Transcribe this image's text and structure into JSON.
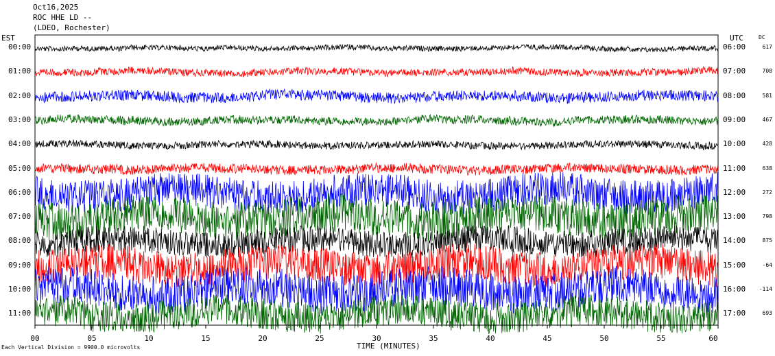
{
  "header": {
    "date": "Oct16,2025",
    "station": "ROC HHE LD --",
    "network": "(LDEO, Rochester)"
  },
  "left_label": "EST",
  "right_label": "UTC",
  "dc_label": "DC",
  "footer": "Each Vertical Division = 9900.0 microvolts",
  "chart_data": {
    "type": "line",
    "chart_kind": "helicorder",
    "xlabel": "TIME (MINUTES)",
    "xlim": [
      0,
      60
    ],
    "xticks": [
      "00",
      "05",
      "10",
      "15",
      "20",
      "25",
      "30",
      "35",
      "40",
      "45",
      "50",
      "55",
      "60"
    ],
    "rows": [
      {
        "est": "00:00",
        "utc": "06:00",
        "dc": "617",
        "color": "#000000",
        "amplitude": 0.22
      },
      {
        "est": "01:00",
        "utc": "07:00",
        "dc": "708",
        "color": "#ff0000",
        "amplitude": 0.3
      },
      {
        "est": "02:00",
        "utc": "08:00",
        "dc": "581",
        "color": "#0000ff",
        "amplitude": 0.45
      },
      {
        "est": "03:00",
        "utc": "09:00",
        "dc": "467",
        "color": "#006400",
        "amplitude": 0.35
      },
      {
        "est": "04:00",
        "utc": "10:00",
        "dc": "428",
        "color": "#000000",
        "amplitude": 0.3
      },
      {
        "est": "05:00",
        "utc": "11:00",
        "dc": "638",
        "color": "#ff0000",
        "amplitude": 0.4
      },
      {
        "est": "06:00",
        "utc": "12:00",
        "dc": "272",
        "color": "#0000ff",
        "amplitude": 1.4
      },
      {
        "est": "07:00",
        "utc": "13:00",
        "dc": "798",
        "color": "#006400",
        "amplitude": 1.6
      },
      {
        "est": "08:00",
        "utc": "14:00",
        "dc": "875",
        "color": "#000000",
        "amplitude": 1.1
      },
      {
        "est": "09:00",
        "utc": "15:00",
        "dc": "-64",
        "color": "#ff0000",
        "amplitude": 1.5
      },
      {
        "est": "10:00",
        "utc": "16:00",
        "dc": "-114",
        "color": "#0000ff",
        "amplitude": 1.6
      },
      {
        "est": "11:00",
        "utc": "17:00",
        "dc": "693",
        "color": "#006400",
        "amplitude": 1.3
      }
    ]
  }
}
